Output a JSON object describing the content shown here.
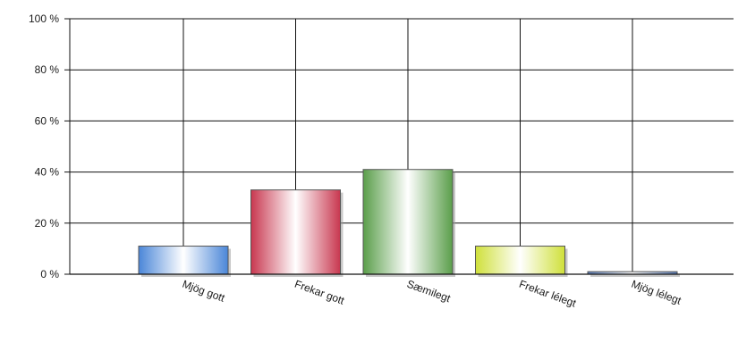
{
  "chart_data": {
    "type": "bar",
    "title": "",
    "xlabel": "",
    "ylabel": "",
    "categories": [
      "Mjög gott",
      "Frekar gott",
      "Sæmilegt",
      "Frekar lélegt",
      "Mjög lélegt"
    ],
    "values": [
      11,
      33,
      41,
      11,
      1
    ],
    "ylim": [
      0,
      100
    ],
    "yticks": [
      0,
      20,
      40,
      60,
      80,
      100
    ],
    "ytick_labels": [
      "0 %",
      "20 %",
      "40 %",
      "60 %",
      "80 %",
      "100 %"
    ],
    "grid": true,
    "colors": [
      "#4a86d8",
      "#c8374f",
      "#5a9e4a",
      "#cfe03a",
      "#5b7db8"
    ]
  }
}
